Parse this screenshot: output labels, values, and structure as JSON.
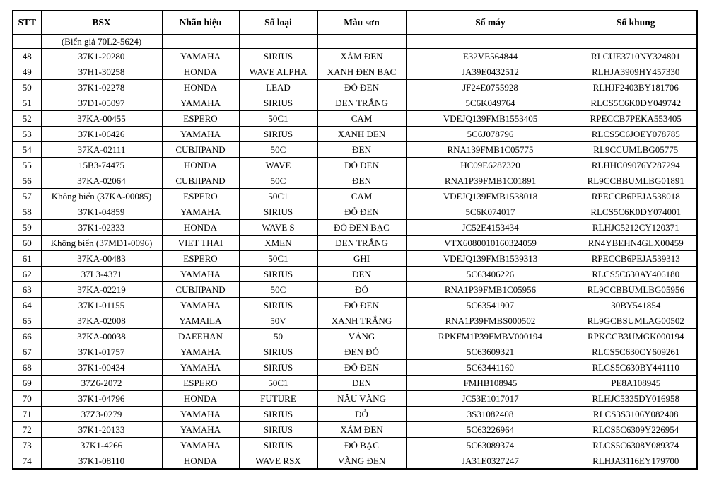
{
  "table": {
    "columns": [
      "STT",
      "BSX",
      "Nhãn hiệu",
      "Số loại",
      "Màu sơn",
      "Số máy",
      "Số khung"
    ],
    "note_row": [
      "",
      "(Biển giả 70L2-5624)",
      "",
      "",
      "",
      "",
      ""
    ],
    "rows": [
      [
        "48",
        "37K1-20280",
        "YAMAHA",
        "SIRIUS",
        "XÁM ĐEN",
        "E32VE564844",
        "RLCUE3710NY324801"
      ],
      [
        "49",
        "37H1-30258",
        "HONDA",
        "WAVE ALPHA",
        "XANH ĐEN BẠC",
        "JA39E0432512",
        "RLHJA3909HY457330"
      ],
      [
        "50",
        "37K1-02278",
        "HONDA",
        "LEAD",
        "ĐỎ ĐEN",
        "JF24E0755928",
        "RLHJF2403BY181706"
      ],
      [
        "51",
        "37D1-05097",
        "YAMAHA",
        "SIRIUS",
        "ĐEN TRẮNG",
        "5C6K049764",
        "RLCS5C6K0DY049742"
      ],
      [
        "52",
        "37KA-00455",
        "ESPERO",
        "50C1",
        "CAM",
        "VDEJQ139FMB1553405",
        "RPECCB7PEKA553405"
      ],
      [
        "53",
        "37K1-06426",
        "YAMAHA",
        "SIRIUS",
        "XANH ĐEN",
        "5C6J078796",
        "RLCS5C6JOEY078785"
      ],
      [
        "54",
        "37KA-02111",
        "CUBJIPAND",
        "50C",
        "ĐEN",
        "RNA139FMB1C05775",
        "RL9CCUMLBG05775"
      ],
      [
        "55",
        "15B3-74475",
        "HONDA",
        "WAVE",
        "ĐỎ ĐEN",
        "HC09E6287320",
        "RLHHC09076Y287294"
      ],
      [
        "56",
        "37KA-02064",
        "CUBJIPAND",
        "50C",
        "ĐEN",
        "RNA1P39FMB1C01891",
        "RL9CCBBUMLBG01891"
      ],
      [
        "57",
        "Không biển  (37KA-00085)",
        "ESPERO",
        "50C1",
        "CAM",
        "VDEJQ139FMB1538018",
        "RPECCB6PEJA538018"
      ],
      [
        "58",
        "37K1-04859",
        "YAMAHA",
        "SIRIUS",
        "ĐỎ ĐEN",
        "5C6K074017",
        "RLCS5C6K0DY074001"
      ],
      [
        "59",
        "37K1-02333",
        "HONDA",
        "WAVE S",
        "ĐỎ ĐEN BẠC",
        "JC52E4153434",
        "RLHJC5212CY120371"
      ],
      [
        "60",
        "Không biển  (37MĐ1-0096)",
        "VIET THAI",
        "XMEN",
        "ĐEN TRẮNG",
        "VTX6080010160324059",
        "RN4YBEHN4GLX00459"
      ],
      [
        "61",
        "37KA-00483",
        "ESPERO",
        "50C1",
        "GHI",
        "VDEJQ139FMB1539313",
        "RPECCB6PEJA539313"
      ],
      [
        "62",
        "37L3-4371",
        "YAMAHA",
        "SIRIUS",
        "ĐEN",
        "5C63406226",
        "RLCS5C630AY406180"
      ],
      [
        "63",
        "37KA-02219",
        "CUBJIPAND",
        "50C",
        "ĐỎ",
        "RNA1P39FMB1C05956",
        "RL9CCBBUMLBG05956"
      ],
      [
        "64",
        "37K1-01155",
        "YAMAHA",
        "SIRIUS",
        "ĐỎ ĐEN",
        "5C63541907",
        "30BY541854"
      ],
      [
        "65",
        "37KA-02008",
        "YAMAILA",
        "50V",
        "XANH TRẮNG",
        "RNA1P39FMBS000502",
        "RL9GCBSUMLAG00502"
      ],
      [
        "66",
        "37KA-00038",
        "DAEEHAN",
        "50",
        "VÀNG",
        "RPKFM1P39FMBV000194",
        "RPKCCB3UMGK000194"
      ],
      [
        "67",
        "37K1-01757",
        "YAMAHA",
        "SIRIUS",
        "ĐEN ĐỎ",
        "5C63609321",
        "RLCS5C630CY609261"
      ],
      [
        "68",
        "37K1-00434",
        "YAMAHA",
        "SIRIUS",
        "ĐỎ ĐEN",
        "5C63441160",
        "RLCS5C630BY441110"
      ],
      [
        "69",
        "37Z6-2072",
        "ESPERO",
        "50C1",
        "ĐEN",
        "FMHB108945",
        "PE8A108945"
      ],
      [
        "70",
        "37K1-04796",
        "HONDA",
        "FUTURE",
        "NÂU VÀNG",
        "JC53E1017017",
        "RLHJC5335DY016958"
      ],
      [
        "71",
        "37Z3-0279",
        "YAMAHA",
        "SIRIUS",
        "ĐỎ",
        "3S31082408",
        "RLCS3S3106Y082408"
      ],
      [
        "72",
        "37K1-20133",
        "YAMAHA",
        "SIRIUS",
        "XÁM ĐEN",
        "5C63226964",
        "RLCS5C6309Y226954"
      ],
      [
        "73",
        "37K1-4266",
        "YAMAHA",
        "SIRIUS",
        "ĐỎ BẠC",
        "5C63089374",
        "RLCS5C6308Y089374"
      ],
      [
        "74",
        "37K1-08110",
        "HONDA",
        "WAVE RSX",
        "VÀNG ĐEN",
        "JA31E0327247",
        "RLHJA3116EY179700"
      ]
    ]
  }
}
